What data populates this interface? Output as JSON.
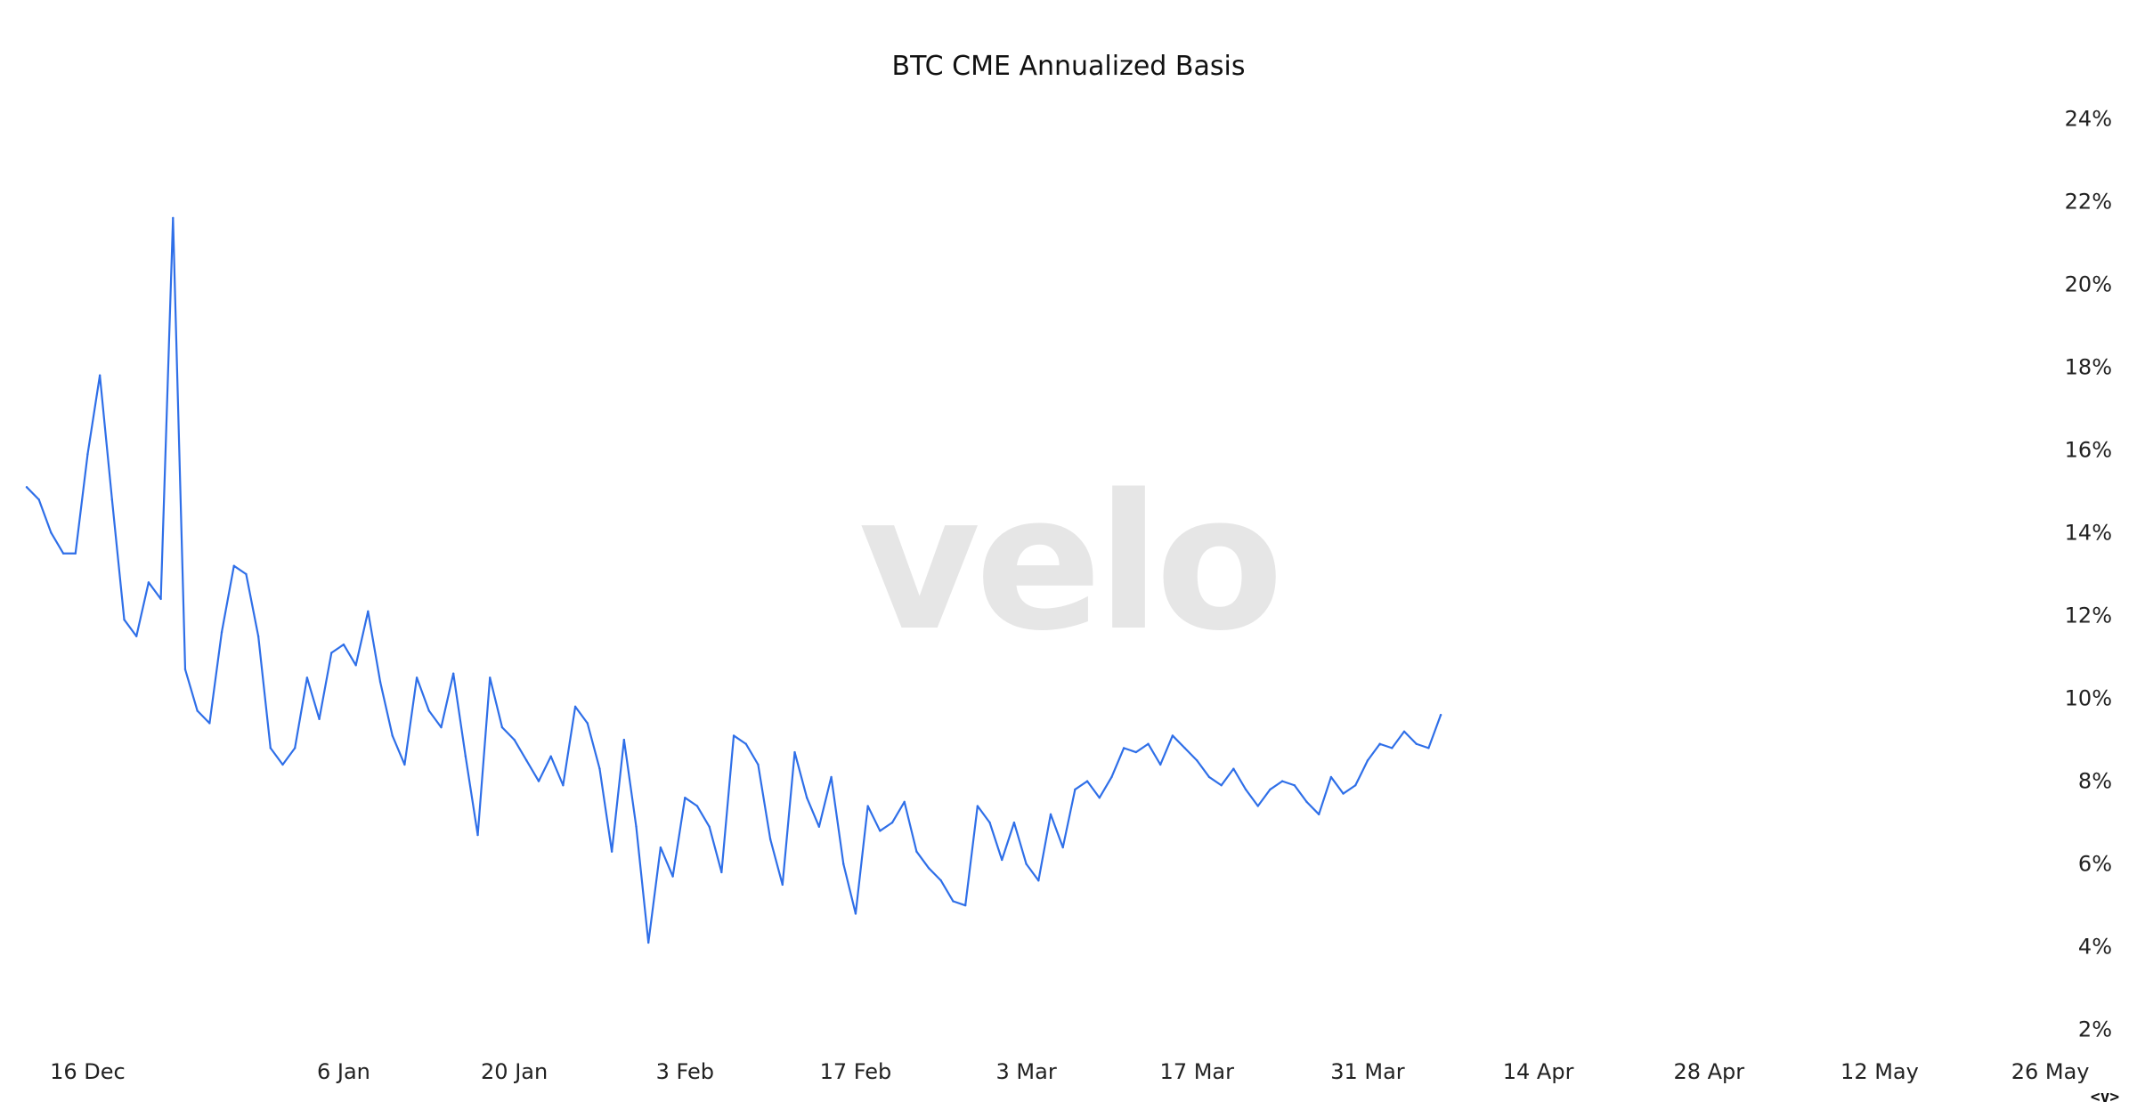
{
  "watermark": "velo",
  "nav_control_label": "<v>",
  "colors": {
    "series": "#2f6fe8",
    "watermark": "#e6e6e6",
    "text": "#111111"
  },
  "chart_data": {
    "type": "line",
    "title": "BTC CME Annualized Basis",
    "xlabel": "",
    "ylabel": "",
    "y_axis_position": "right",
    "grid": false,
    "legend": "none",
    "ylim": [
      1.5,
      24.5
    ],
    "y_ticks": [
      2,
      4,
      6,
      8,
      10,
      12,
      14,
      16,
      18,
      20,
      22,
      24
    ],
    "y_tick_labels": [
      "2%",
      "4%",
      "6%",
      "8%",
      "10%",
      "12%",
      "14%",
      "16%",
      "18%",
      "20%",
      "22%",
      "24%"
    ],
    "x_start": "2024-12-11",
    "x_end": "2025-05-28",
    "x_ticks": [
      {
        "date": "2024-12-16",
        "label": "16 Dec"
      },
      {
        "date": "2025-01-06",
        "label": "6 Jan"
      },
      {
        "date": "2025-01-20",
        "label": "20 Jan"
      },
      {
        "date": "2025-02-03",
        "label": "3 Feb"
      },
      {
        "date": "2025-02-17",
        "label": "17 Feb"
      },
      {
        "date": "2025-03-03",
        "label": "3 Mar"
      },
      {
        "date": "2025-03-17",
        "label": "17 Mar"
      },
      {
        "date": "2025-03-31",
        "label": "31 Mar"
      },
      {
        "date": "2025-04-14",
        "label": "14 Apr"
      },
      {
        "date": "2025-04-28",
        "label": "28 Apr"
      },
      {
        "date": "2025-05-12",
        "label": "12 May"
      },
      {
        "date": "2025-05-26",
        "label": "26 May"
      }
    ],
    "series": [
      {
        "color": "#2f6fe8",
        "points": [
          [
            "2024-12-11",
            15.1
          ],
          [
            "2024-12-12",
            14.8
          ],
          [
            "2024-12-13",
            14.0
          ],
          [
            "2024-12-14",
            13.5
          ],
          [
            "2024-12-15",
            13.5
          ],
          [
            "2024-12-16",
            15.9
          ],
          [
            "2024-12-17",
            17.8
          ],
          [
            "2024-12-18",
            14.8
          ],
          [
            "2024-12-19",
            11.9
          ],
          [
            "2024-12-20",
            11.5
          ],
          [
            "2024-12-21",
            12.8
          ],
          [
            "2024-12-22",
            12.4
          ],
          [
            "2024-12-23",
            21.6
          ],
          [
            "2024-12-24",
            10.7
          ],
          [
            "2024-12-25",
            9.7
          ],
          [
            "2024-12-26",
            9.4
          ],
          [
            "2024-12-27",
            11.6
          ],
          [
            "2024-12-28",
            13.2
          ],
          [
            "2024-12-29",
            13.0
          ],
          [
            "2024-12-30",
            11.5
          ],
          [
            "2024-12-31",
            8.8
          ],
          [
            "2025-01-01",
            8.4
          ],
          [
            "2025-01-02",
            8.8
          ],
          [
            "2025-01-03",
            10.5
          ],
          [
            "2025-01-04",
            9.5
          ],
          [
            "2025-01-05",
            11.1
          ],
          [
            "2025-01-06",
            11.3
          ],
          [
            "2025-01-07",
            10.8
          ],
          [
            "2025-01-08",
            12.1
          ],
          [
            "2025-01-09",
            10.4
          ],
          [
            "2025-01-10",
            9.1
          ],
          [
            "2025-01-11",
            8.4
          ],
          [
            "2025-01-12",
            10.5
          ],
          [
            "2025-01-13",
            9.7
          ],
          [
            "2025-01-14",
            9.3
          ],
          [
            "2025-01-15",
            10.6
          ],
          [
            "2025-01-16",
            8.6
          ],
          [
            "2025-01-17",
            6.7
          ],
          [
            "2025-01-18",
            10.5
          ],
          [
            "2025-01-19",
            9.3
          ],
          [
            "2025-01-20",
            9.0
          ],
          [
            "2025-01-21",
            8.5
          ],
          [
            "2025-01-22",
            8.0
          ],
          [
            "2025-01-23",
            8.6
          ],
          [
            "2025-01-24",
            7.9
          ],
          [
            "2025-01-25",
            9.8
          ],
          [
            "2025-01-26",
            9.4
          ],
          [
            "2025-01-27",
            8.3
          ],
          [
            "2025-01-28",
            6.3
          ],
          [
            "2025-01-29",
            9.0
          ],
          [
            "2025-01-30",
            6.9
          ],
          [
            "2025-01-31",
            4.1
          ],
          [
            "2025-02-01",
            6.4
          ],
          [
            "2025-02-02",
            5.7
          ],
          [
            "2025-02-03",
            7.6
          ],
          [
            "2025-02-04",
            7.4
          ],
          [
            "2025-02-05",
            6.9
          ],
          [
            "2025-02-06",
            5.8
          ],
          [
            "2025-02-07",
            9.1
          ],
          [
            "2025-02-08",
            8.9
          ],
          [
            "2025-02-09",
            8.4
          ],
          [
            "2025-02-10",
            6.6
          ],
          [
            "2025-02-11",
            5.5
          ],
          [
            "2025-02-12",
            8.7
          ],
          [
            "2025-02-13",
            7.6
          ],
          [
            "2025-02-14",
            6.9
          ],
          [
            "2025-02-15",
            8.1
          ],
          [
            "2025-02-16",
            6.0
          ],
          [
            "2025-02-17",
            4.8
          ],
          [
            "2025-02-18",
            7.4
          ],
          [
            "2025-02-19",
            6.8
          ],
          [
            "2025-02-20",
            7.0
          ],
          [
            "2025-02-21",
            7.5
          ],
          [
            "2025-02-22",
            6.3
          ],
          [
            "2025-02-23",
            5.9
          ],
          [
            "2025-02-24",
            5.6
          ],
          [
            "2025-02-25",
            5.1
          ],
          [
            "2025-02-26",
            5.0
          ],
          [
            "2025-02-27",
            7.4
          ],
          [
            "2025-02-28",
            7.0
          ],
          [
            "2025-03-01",
            6.1
          ],
          [
            "2025-03-02",
            7.0
          ],
          [
            "2025-03-03",
            6.0
          ],
          [
            "2025-03-04",
            5.6
          ],
          [
            "2025-03-05",
            7.2
          ],
          [
            "2025-03-06",
            6.4
          ],
          [
            "2025-03-07",
            7.8
          ],
          [
            "2025-03-08",
            8.0
          ],
          [
            "2025-03-09",
            7.6
          ],
          [
            "2025-03-10",
            8.1
          ],
          [
            "2025-03-11",
            8.8
          ],
          [
            "2025-03-12",
            8.7
          ],
          [
            "2025-03-13",
            8.9
          ],
          [
            "2025-03-14",
            8.4
          ],
          [
            "2025-03-15",
            9.1
          ],
          [
            "2025-03-16",
            8.8
          ],
          [
            "2025-03-17",
            8.5
          ],
          [
            "2025-03-18",
            8.1
          ],
          [
            "2025-03-19",
            7.9
          ],
          [
            "2025-03-20",
            8.3
          ],
          [
            "2025-03-21",
            7.8
          ],
          [
            "2025-03-22",
            7.4
          ],
          [
            "2025-03-23",
            7.8
          ],
          [
            "2025-03-24",
            8.0
          ],
          [
            "2025-03-25",
            7.9
          ],
          [
            "2025-03-26",
            7.5
          ],
          [
            "2025-03-27",
            7.2
          ],
          [
            "2025-03-28",
            8.1
          ],
          [
            "2025-03-29",
            7.7
          ],
          [
            "2025-03-30",
            7.9
          ],
          [
            "2025-03-31",
            8.5
          ],
          [
            "2025-04-01",
            8.9
          ],
          [
            "2025-04-02",
            8.8
          ],
          [
            "2025-04-03",
            9.2
          ],
          [
            "2025-04-04",
            8.9
          ],
          [
            "2025-04-05",
            8.8
          ],
          [
            "2025-04-06",
            9.6
          ]
        ]
      }
    ]
  }
}
